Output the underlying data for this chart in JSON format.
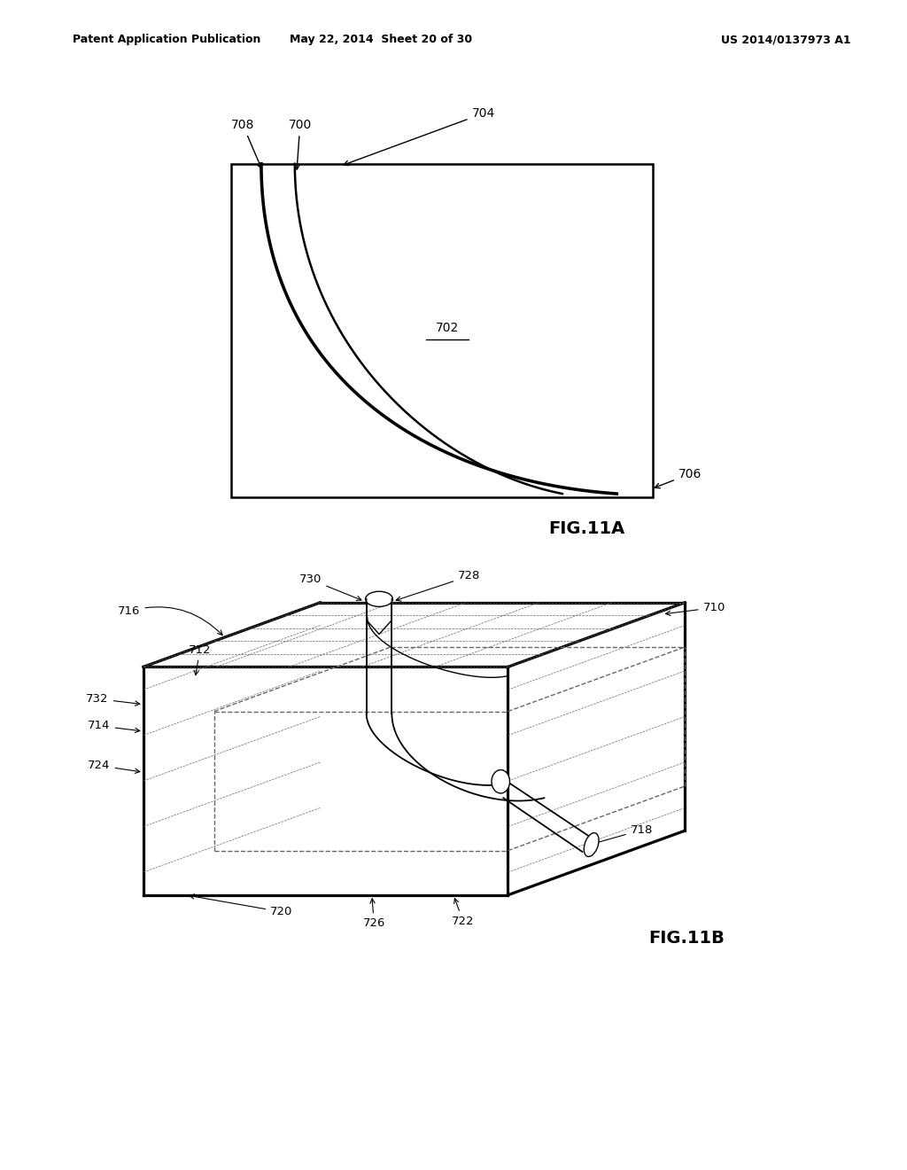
{
  "bg_color": "#ffffff",
  "header_left": "Patent Application Publication",
  "header_mid": "May 22, 2014  Sheet 20 of 30",
  "header_right": "US 2014/0137973 A1",
  "fig11a_label": "FIG.11A",
  "fig11b_label": "FIG.11B",
  "font_size_header": 9,
  "font_size_label": 10,
  "font_size_fig": 14,
  "lw_main": 1.8,
  "lw_thin": 1.0,
  "color_black": "#000000",
  "color_dash": "#666666"
}
